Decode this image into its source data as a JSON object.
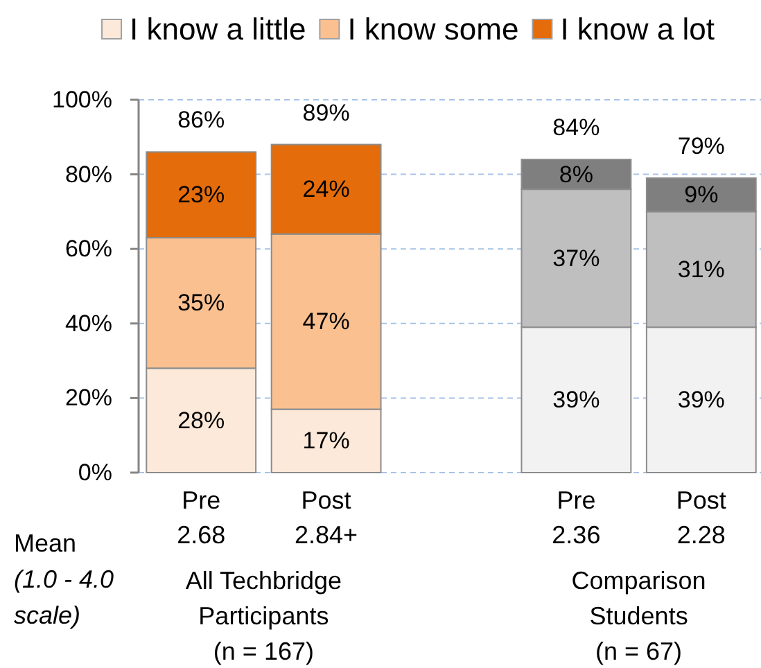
{
  "chart_data": {
    "type": "bar",
    "stacked": true,
    "categories": [
      "Pre\n2.68",
      "Post\n2.84+",
      null,
      "Pre\n2.36",
      "Post\n2.28"
    ],
    "series": [
      {
        "name": "I know a little",
        "color": "#fde9d9",
        "colors": [
          "#fde9d9",
          "#fde9d9",
          null,
          "#f2f2f2",
          "#f2f2f2"
        ],
        "values": [
          28,
          17,
          null,
          39,
          39
        ],
        "value_labels": [
          "28%",
          "17%",
          null,
          "39%",
          "39%"
        ]
      },
      {
        "name": "I know some",
        "color": "#fac090",
        "colors": [
          "#fac090",
          "#fac090",
          null,
          "#bfbfbf",
          "#bfbfbf"
        ],
        "values": [
          35,
          47,
          null,
          37,
          31
        ],
        "value_labels": [
          "35%",
          "47%",
          null,
          "37%",
          "31%"
        ]
      },
      {
        "name": "I know a lot",
        "color": "#e46c0a",
        "colors": [
          "#e46c0a",
          "#e46c0a",
          null,
          "#7f7f7f",
          "#7f7f7f"
        ],
        "values": [
          23,
          24,
          null,
          8,
          9
        ],
        "value_labels": [
          "23%",
          "24%",
          null,
          "8%",
          "9%"
        ]
      }
    ],
    "totals": [
      "86%",
      "89%",
      null,
      "84%",
      "79%"
    ],
    "ylim": [
      0,
      100
    ],
    "yticks": [
      {
        "value": 0,
        "label": "0%"
      },
      {
        "value": 20,
        "label": "20%"
      },
      {
        "value": 40,
        "label": "40%"
      },
      {
        "value": 60,
        "label": "60%"
      },
      {
        "value": 80,
        "label": "80%"
      },
      {
        "value": 100,
        "label": "100%"
      }
    ],
    "grid": "y",
    "legend": "top",
    "annotations": [
      "Mean",
      "(1.0 - 4.0\nscale)",
      "All Techbridge\nParticipants\n(n = 167)",
      "Comparison\nStudents\n(n = 67)"
    ]
  }
}
